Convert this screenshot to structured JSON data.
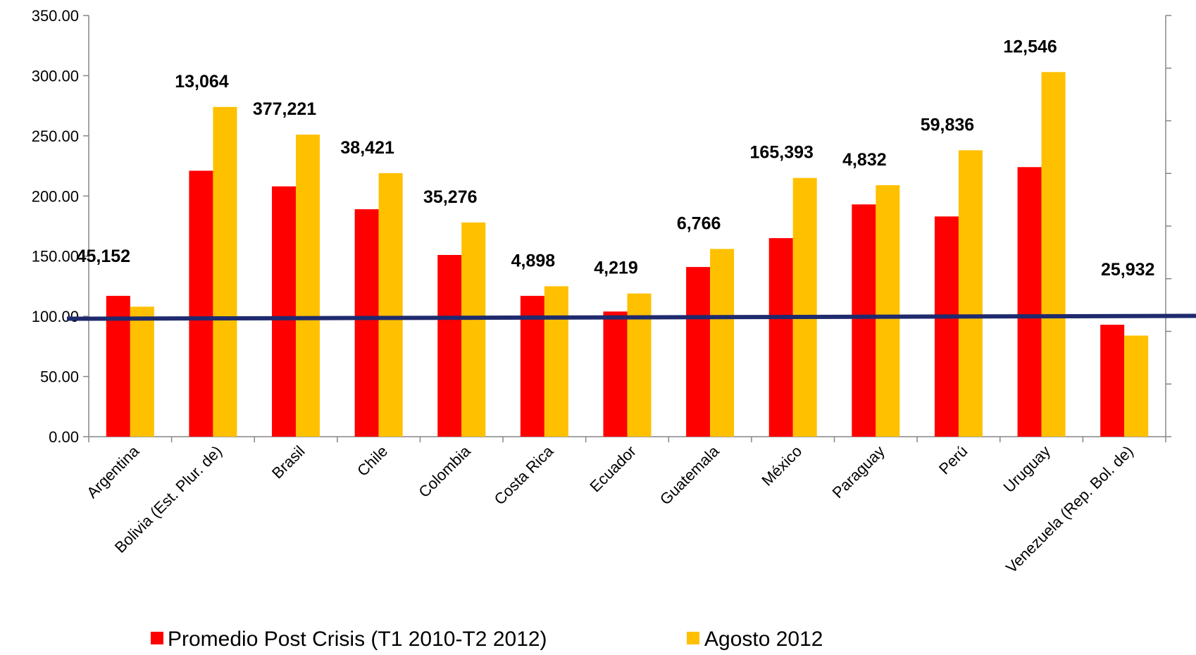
{
  "chart_data": {
    "type": "bar",
    "categories": [
      "Argentina",
      "Bolivia (Est. Plur. de)",
      "Brasil",
      "Chile",
      "Colombia",
      "Costa Rica",
      "Ecuador",
      "Guatemala",
      "México",
      "Paraguay",
      "Perú",
      "Uruguay",
      "Venezuela (Rep. Bol. de)"
    ],
    "series": [
      {
        "name": "Promedio Post Crisis (T1 2010-T2 2012)",
        "color": "#ff0000",
        "values": [
          117,
          221,
          208,
          189,
          151,
          117,
          104,
          141,
          165,
          193,
          183,
          224,
          93
        ]
      },
      {
        "name": "Agosto 2012",
        "color": "#ffc000",
        "values": [
          108,
          274,
          251,
          219,
          178,
          125,
          119,
          156,
          215,
          209,
          238,
          303,
          84
        ]
      }
    ],
    "annotations": [
      "45,152",
      "13,064",
      "377,221",
      "38,421",
      "35,276",
      "4,898",
      "4,219",
      "6,766",
      "165,393",
      "4,832",
      "59,836",
      "12,546",
      "25,932"
    ],
    "y_ticks": [
      "0.00",
      "50.00",
      "100.00",
      "150.00",
      "200.00",
      "250.00",
      "300.00",
      "350.00"
    ],
    "ylim": [
      0,
      350
    ],
    "reference_line": {
      "value": 98,
      "color": "#1f2a6e"
    },
    "secondary_axis": true,
    "legend": "bottom",
    "grid": false
  }
}
